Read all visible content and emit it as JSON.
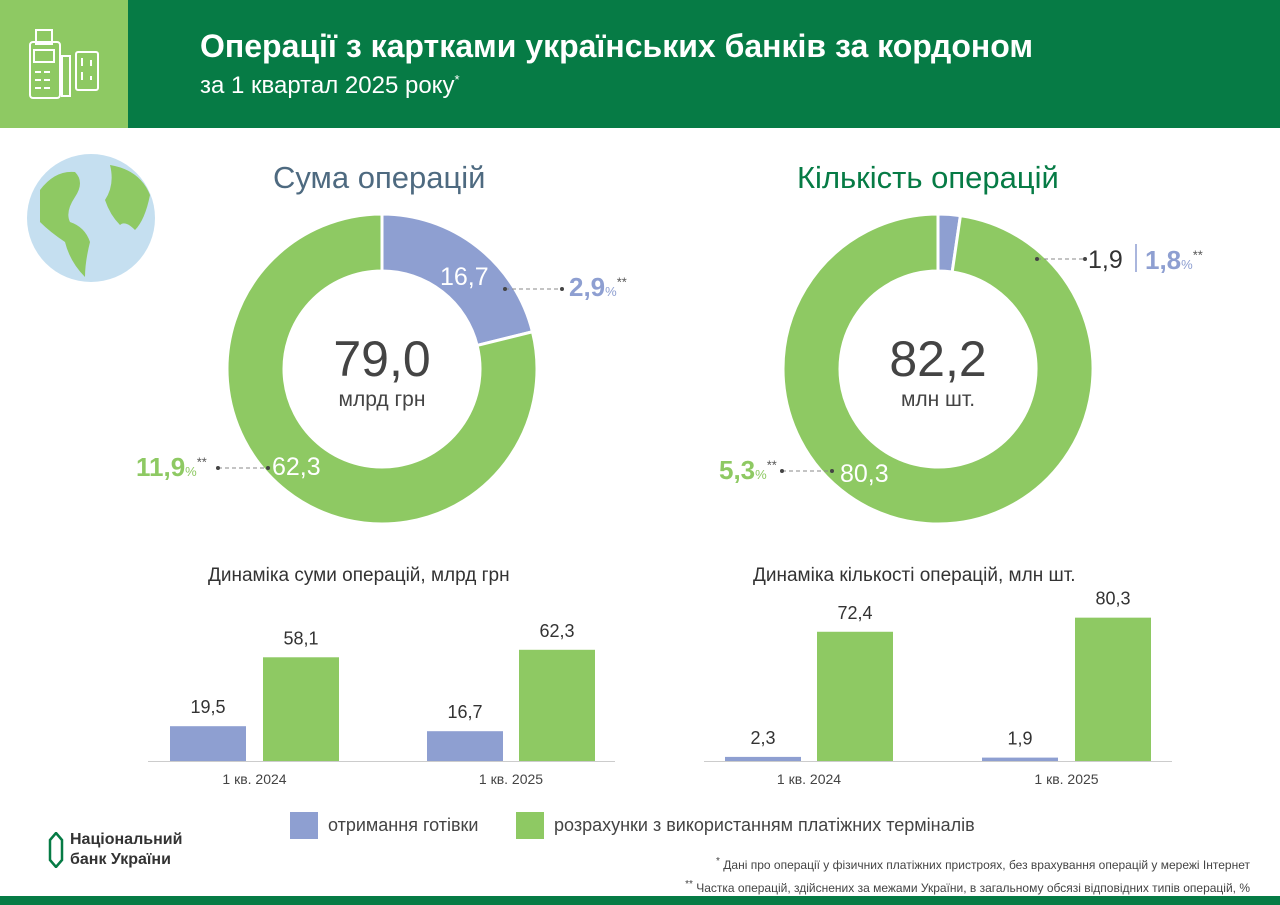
{
  "header": {
    "title": "Операції з картками українських банків за кордоном",
    "subtitle": "за 1 квартал 2025 року",
    "subtitle_mark": "*",
    "icon": "pos-terminal-card-icon"
  },
  "colors": {
    "cash": "#8e9fd1",
    "terminals": "#8ec963",
    "header": "#067b45"
  },
  "donuts": [
    {
      "title": "Сума операцій",
      "total": "79,0",
      "unit": "млрд грн",
      "cash_value": "16,7",
      "terminal_value": "62,3",
      "cash_share": "2,9",
      "terminal_share": "11,9"
    },
    {
      "title": "Кількість операцій",
      "total": "82,2",
      "unit": "млн шт.",
      "cash_value": "1,9",
      "terminal_value": "80,3",
      "cash_share": "1,8",
      "terminal_share": "5,3"
    }
  ],
  "pct_sign": "%",
  "stars": "**",
  "chart_data": [
    {
      "type": "pie",
      "title": "Сума операцій",
      "values": [
        16.7,
        62.3
      ],
      "categories": [
        "отримання готівки",
        "розрахунки з використанням платіжних терміналів"
      ],
      "total": 79.0
    },
    {
      "type": "pie",
      "title": "Кількість операцій",
      "values": [
        1.9,
        80.3
      ],
      "categories": [
        "отримання готівки",
        "розрахунки з використанням платіжних терміналів"
      ],
      "total": 82.2
    },
    {
      "type": "bar",
      "title": "Динаміка суми операцій, млрд грн",
      "categories": [
        "1 кв. 2024",
        "1 кв. 2025"
      ],
      "series": [
        {
          "name": "отримання готівки",
          "values": [
            19.5,
            16.7
          ],
          "labels": [
            "19,5",
            "16,7"
          ]
        },
        {
          "name": "розрахунки з використанням платіжних терміналів",
          "values": [
            58.1,
            62.3
          ],
          "labels": [
            "58,1",
            "62,3"
          ]
        }
      ]
    },
    {
      "type": "bar",
      "title": "Динаміка кількості операцій, млн шт.",
      "categories": [
        "1 кв. 2024",
        "1 кв. 2025"
      ],
      "series": [
        {
          "name": "отримання готівки",
          "values": [
            2.3,
            1.9
          ],
          "labels": [
            "2,3",
            "1,9"
          ]
        },
        {
          "name": "розрахунки з використанням платіжних терміналів",
          "values": [
            72.4,
            80.3
          ],
          "labels": [
            "72,4",
            "80,3"
          ]
        }
      ]
    }
  ],
  "legend": {
    "cash": "отримання готівки",
    "terminals": "розрахунки з використанням платіжних терміналів"
  },
  "logo": {
    "line1": "Національний",
    "line2": "банк України"
  },
  "footnotes": {
    "f1_mark": "*",
    "f1": "Дані про операції у фізичних платіжних пристроях, без врахування операцій у мережі Інтернет",
    "f2_mark": "**",
    "f2": "Частка операцій, здійснених за межами України, в загальному обсязі відповідних типів операцій, %"
  }
}
